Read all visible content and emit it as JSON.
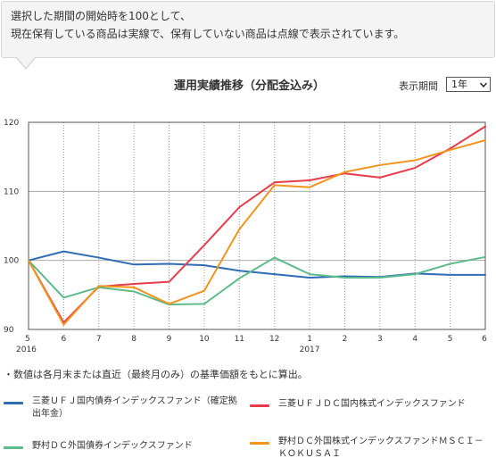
{
  "notice": {
    "line1": "選択した期間の開始時を100として、",
    "line2": "現在保有している商品は実線で、保有していない商品は点線で表示されています。"
  },
  "header": {
    "title": "運用実績推移（分配金込み）",
    "period_label": "表示期間",
    "period_value": "1年"
  },
  "note": "・数値は各月末または直近（最終月のみ）の基準価額をもとに算出。",
  "chart_data": {
    "type": "line",
    "title": "運用実績推移（分配金込み）",
    "categories": [
      "5",
      "6",
      "7",
      "8",
      "9",
      "10",
      "11",
      "12",
      "1",
      "2",
      "3",
      "4",
      "5",
      "6"
    ],
    "year_labels": [
      {
        "index": 0,
        "label": "2016"
      },
      {
        "index": 8,
        "label": "2017"
      }
    ],
    "ylim": [
      90,
      120
    ],
    "yticks": [
      90,
      100,
      110,
      120
    ],
    "grid": true,
    "legend_position": "bottom",
    "series": [
      {
        "name": "三菱ＵＦＪ国内債券インデックスファンド（確定拠出年金）",
        "color": "#2e6db4",
        "values": [
          100,
          101.3,
          100.4,
          99.4,
          99.5,
          99.3,
          98.5,
          98.0,
          97.5,
          97.7,
          97.6,
          98.1,
          97.9,
          97.9
        ]
      },
      {
        "name": "三菱ＵＦＪＤＣ国内株式インデックスファンド",
        "color": "#e63c4c",
        "values": [
          100,
          91.0,
          96.2,
          96.6,
          96.9,
          102.2,
          107.7,
          111.3,
          111.6,
          112.6,
          112.0,
          113.4,
          116.2,
          119.4
        ]
      },
      {
        "name": "野村ＤＣ外国債券インデックスファンド",
        "color": "#5cbb8a",
        "values": [
          100,
          94.6,
          96.1,
          95.5,
          93.6,
          93.7,
          97.4,
          100.4,
          98.0,
          97.5,
          97.5,
          98.0,
          99.5,
          100.5
        ]
      },
      {
        "name": "野村ＤＣ外国株式インデックスファンドＭＳＣＩ－ＫＯＫＵＳＡＩ",
        "color": "#f0941e",
        "values": [
          100,
          90.7,
          96.3,
          96.1,
          93.7,
          95.6,
          104.5,
          110.9,
          110.6,
          112.8,
          113.8,
          114.5,
          116.0,
          117.4
        ]
      }
    ]
  },
  "legend": {
    "item1": {
      "label": "三菱ＵＦＪ国内債券インデックスファンド（確定拠出年金）",
      "color": "#2e6db4"
    },
    "item2": {
      "label": "三菱ＵＦＪＤＣ国内株式インデックスファンド",
      "color": "#e63c4c"
    },
    "item3": {
      "label": "野村ＤＣ外国債券インデックスファンド",
      "color": "#5cbb8a"
    },
    "item4": {
      "label": "野村ＤＣ外国株式インデックスファンドＭＳＣＩ－ＫＯＫＵＳＡＩ",
      "color": "#f0941e"
    }
  }
}
